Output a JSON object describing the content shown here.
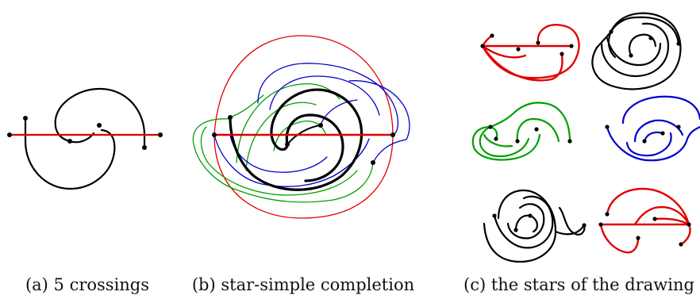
{
  "captions": {
    "a": "(a) 5 crossings",
    "b": "(b) star-simple completion",
    "c": "(c) the stars of the drawing"
  },
  "colors": {
    "black": "#000000",
    "red": "#e00000",
    "green": "#00a000",
    "blue": "#0000cc"
  }
}
